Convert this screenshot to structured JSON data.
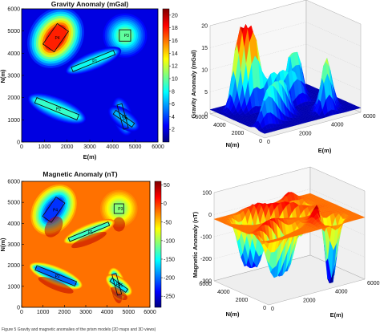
{
  "caption": "Figure 5  Gravity and magnetic anomalies of the prism models (2D maps and 3D views)",
  "colors": {
    "body_outline": "#111111",
    "frame": "#000000"
  },
  "chart_data": [
    {
      "type": "heatmap",
      "title": "Gravity Anomaly (mGal)",
      "xlabel": "E(m)",
      "ylabel": "N(m)",
      "xlim": [
        0,
        6000
      ],
      "ylim": [
        0,
        6000
      ],
      "xticks": [
        "0",
        "1000",
        "2000",
        "3000",
        "4000",
        "5000",
        "6000"
      ],
      "yticks": [
        "0",
        "1000",
        "2000",
        "3000",
        "4000",
        "5000",
        "6000"
      ],
      "colorbar": {
        "min": 0,
        "max": 21,
        "ticks": [
          "2",
          "4",
          "6",
          "8",
          "10",
          "12",
          "14",
          "16",
          "18",
          "20"
        ]
      },
      "bodies": [
        {
          "name": "P4",
          "cx": 1500,
          "cy": 4700,
          "length": 1100,
          "width": 600,
          "angle": -55,
          "peak": 20
        },
        {
          "name": "P3",
          "cx": 4550,
          "cy": 4800,
          "length": 500,
          "width": 500,
          "angle": 0,
          "peak": 11
        },
        {
          "name": "P1",
          "cx": 3150,
          "cy": 3650,
          "length": 2000,
          "width": 200,
          "angle": -22,
          "peak": 9
        },
        {
          "name": "P2",
          "cx": 1550,
          "cy": 1500,
          "length": 2000,
          "width": 250,
          "angle": 22,
          "peak": 10
        },
        {
          "name": "P6",
          "cx": 4450,
          "cy": 1150,
          "length": 1100,
          "width": 220,
          "angle": 75,
          "peak": 7
        },
        {
          "name": "P5",
          "cx": 4500,
          "cy": 1050,
          "length": 1000,
          "width": 200,
          "angle": 35,
          "peak": 7
        }
      ]
    },
    {
      "type": "surface3d",
      "title": "",
      "xlabel": "E(m)",
      "ylabel": "N(m)",
      "zlabel": "Gravity Anomaly (mGal)",
      "zlim": [
        0,
        20
      ],
      "zticks": [
        "0",
        "5",
        "10",
        "15",
        "20"
      ],
      "xticks": [
        "0",
        "2000",
        "4000",
        "6000"
      ],
      "yticks": [
        "0",
        "2000",
        "4000",
        "6000"
      ]
    },
    {
      "type": "heatmap",
      "title": "Magnetic Anomaly (nT)",
      "xlabel": "E(m)",
      "ylabel": "N(m)",
      "xlim": [
        0,
        6000
      ],
      "ylim": [
        0,
        6000
      ],
      "xticks": [
        "0",
        "1000",
        "2000",
        "3000",
        "4000",
        "5000",
        "6000"
      ],
      "yticks": [
        "0",
        "1000",
        "2000",
        "3000",
        "4000",
        "5000",
        "6000"
      ],
      "colorbar": {
        "min": -280,
        "max": 60,
        "ticks": [
          "50",
          "0",
          "-50",
          "-100",
          "-150",
          "-200",
          "-250"
        ]
      },
      "bodies": [
        {
          "name": "P4",
          "cx": 1500,
          "cy": 4650,
          "length": 1100,
          "width": 500,
          "angle": -55,
          "peak": -250
        },
        {
          "name": "P3",
          "cx": 4550,
          "cy": 4700,
          "length": 450,
          "width": 450,
          "angle": 0,
          "peak": -120
        },
        {
          "name": "P1",
          "cx": 3150,
          "cy": 3600,
          "length": 2000,
          "width": 180,
          "angle": -22,
          "peak": -150
        },
        {
          "name": "P2",
          "cx": 1600,
          "cy": 1500,
          "length": 2000,
          "width": 220,
          "angle": 22,
          "peak": -230
        },
        {
          "name": "P6",
          "cx": 4450,
          "cy": 1100,
          "length": 1000,
          "width": 200,
          "angle": 75,
          "peak": -200
        },
        {
          "name": "P5",
          "cx": 4550,
          "cy": 1050,
          "length": 900,
          "width": 180,
          "angle": 35,
          "peak": -180
        }
      ]
    },
    {
      "type": "surface3d",
      "title": "",
      "xlabel": "E(m)",
      "ylabel": "N(m)",
      "zlabel": "Magnetic Anomaly (nT)",
      "zlim": [
        -300,
        100
      ],
      "zticks": [
        "-300",
        "-200",
        "-100",
        "0",
        "100"
      ],
      "xticks": [
        "0",
        "2000",
        "4000",
        "6000"
      ],
      "yticks": [
        "0",
        "2000",
        "4000",
        "6000"
      ]
    }
  ]
}
